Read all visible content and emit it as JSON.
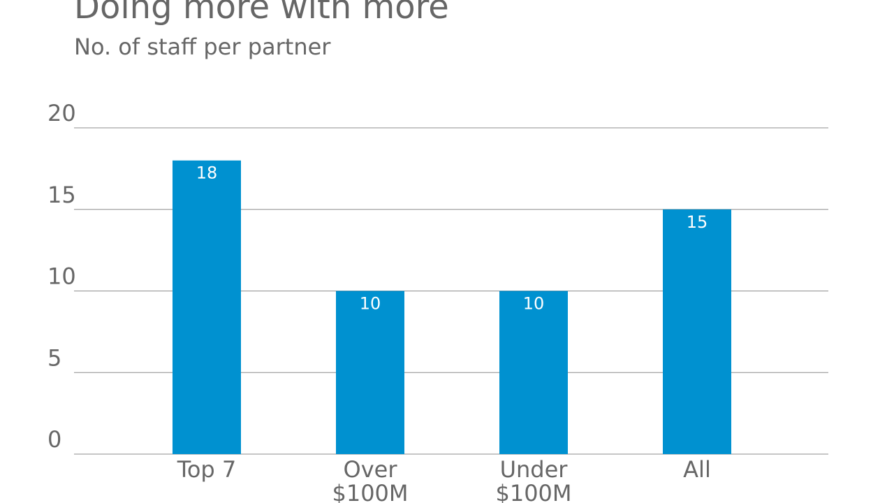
{
  "chart_data": {
    "type": "bar",
    "title": "Doing more with more",
    "subtitle": "No. of staff per partner",
    "categories": [
      "Top 7",
      "Over $100M",
      "Under $100M",
      "All"
    ],
    "values": [
      18,
      10,
      10,
      15
    ],
    "color": "#0091d0",
    "ylim": [
      0,
      20
    ],
    "yticks": [
      0,
      5,
      10,
      15,
      20
    ],
    "grid": true
  }
}
